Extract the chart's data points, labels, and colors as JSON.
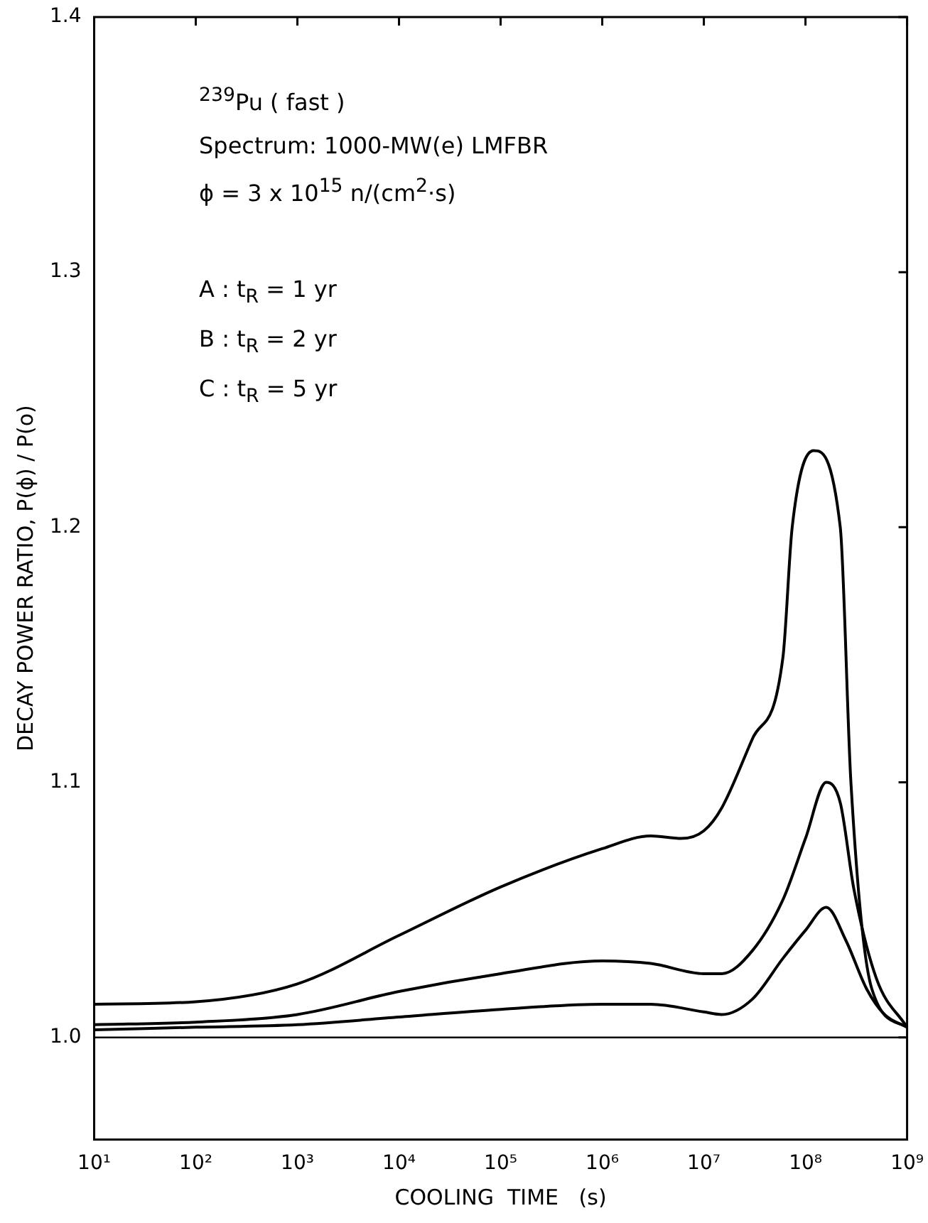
{
  "chart_data": {
    "type": "line",
    "xlabel": "COOLING  TIME   (s)",
    "ylabel": "DECAY POWER RATIO, P(ϕ) / P(o)",
    "log": "x",
    "xlim": [
      10,
      1000000000
    ],
    "ylim": [
      0.96,
      1.4
    ],
    "xticks": [
      {
        "value": 10,
        "label": "10¹"
      },
      {
        "value": 100,
        "label": "10²"
      },
      {
        "value": 1000,
        "label": "10³"
      },
      {
        "value": 10000,
        "label": "10⁴"
      },
      {
        "value": 100000,
        "label": "10⁵"
      },
      {
        "value": 1000000,
        "label": "10⁶"
      },
      {
        "value": 10000000,
        "label": "10⁷"
      },
      {
        "value": 100000000,
        "label": "10⁸"
      },
      {
        "value": 1000000000,
        "label": "10⁹"
      }
    ],
    "yticks": [
      {
        "value": 1.0,
        "label": "1.0"
      },
      1.1,
      1.2,
      1.3,
      1.4
    ],
    "grid": false,
    "legend": false,
    "marker": "none",
    "line_style": "solid",
    "series": [
      {
        "color": "#000000",
        "x": [
          10,
          100,
          1000,
          10000,
          100000,
          1000000,
          3000000,
          6000000,
          10000000,
          15000000,
          30000000,
          60000000,
          74000000,
          120000000,
          220000000,
          280000000,
          450000000,
          1000000000
        ],
        "values": [
          1.013,
          1.014,
          1.021,
          1.04,
          1.059,
          1.074,
          1.079,
          1.078,
          1.081,
          1.09,
          1.117,
          1.149,
          1.2,
          1.23,
          1.2,
          1.1,
          1.019,
          1.004
        ]
      },
      {
        "color": "#000000",
        "x": [
          10,
          100,
          1000,
          10000,
          100000,
          1000000,
          3000000,
          10000000,
          15000000,
          30000000,
          60000000,
          100000000,
          160000000,
          220000000,
          300000000,
          500000000,
          1000000000
        ],
        "values": [
          1.005,
          1.006,
          1.009,
          1.018,
          1.025,
          1.03,
          1.029,
          1.025,
          1.025,
          1.034,
          1.054,
          1.078,
          1.1,
          1.092,
          1.058,
          1.023,
          1.004
        ]
      },
      {
        "color": "#000000",
        "x": [
          10,
          100,
          1000,
          10000,
          100000,
          1000000,
          3000000,
          10000000,
          15000000,
          30000000,
          60000000,
          100000000,
          160000000,
          250000000,
          400000000,
          600000000,
          1000000000
        ],
        "values": [
          1.003,
          1.004,
          1.005,
          1.008,
          1.011,
          1.013,
          1.013,
          1.01,
          1.009,
          1.015,
          1.031,
          1.042,
          1.051,
          1.038,
          1.019,
          1.009,
          1.004
        ]
      }
    ],
    "ref_lines": [
      {
        "axis": "y",
        "value": 1.0,
        "color": "#000000"
      }
    ],
    "annotations": [
      "$^{239}$Pu  ( fast )",
      "Spectrum: 1000-MW(e) LMFBR",
      "ϕ  =  3 x 10$^{15}$ n/(cm$^{2}$·s)",
      "A  :  t$_{R}$  =  1 yr",
      "B  :  t$_{R}$  =  2 yr",
      "C  :  t$_{R}$  =  5 yr"
    ]
  }
}
